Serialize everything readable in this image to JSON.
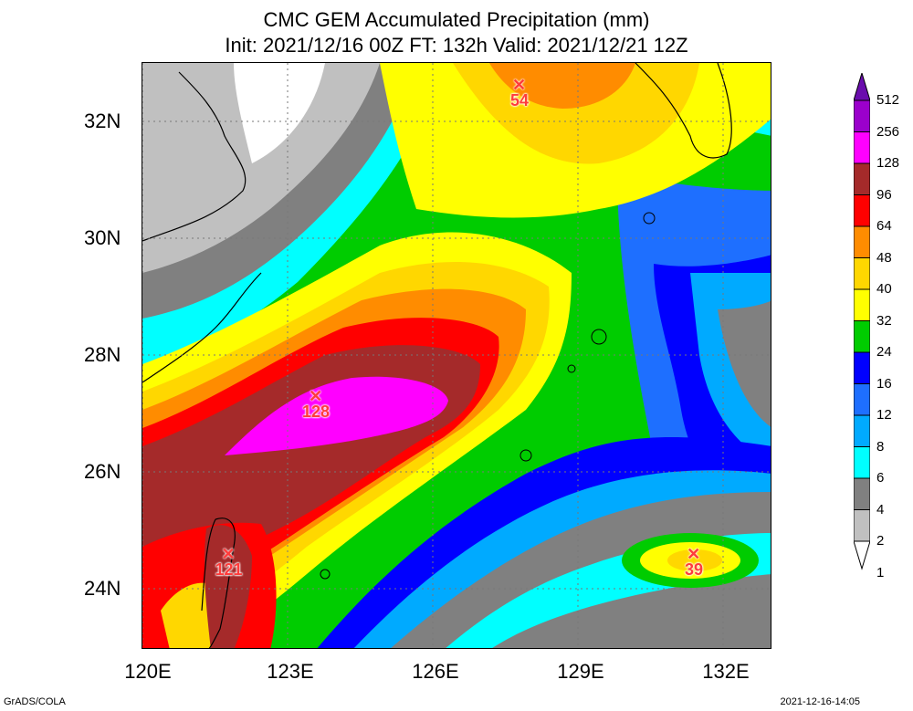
{
  "title": {
    "line1": "CMC GEM Accumulated Precipitation (mm)",
    "line2": "Init: 2021/12/16 00Z  FT: 132h  Valid: 2021/12/21 12Z"
  },
  "axes": {
    "lat_labels": [
      "32N",
      "30N",
      "28N",
      "26N",
      "24N"
    ],
    "lon_labels": [
      "120E",
      "123E",
      "126E",
      "129E",
      "132E"
    ]
  },
  "markers": [
    {
      "value": "54",
      "lon": 127.8,
      "lat": 32.6
    },
    {
      "value": "128",
      "lon": 123.6,
      "lat": 27.3
    },
    {
      "value": "121",
      "lon": 121.8,
      "lat": 24.6
    },
    {
      "value": "39",
      "lon": 131.4,
      "lat": 24.6
    }
  ],
  "colorbar": {
    "labels": [
      "512",
      "256",
      "128",
      "96",
      "64",
      "48",
      "40",
      "32",
      "24",
      "16",
      "12",
      "8",
      "6",
      "4",
      "2",
      "1"
    ],
    "colors": [
      "#6a0dad",
      "#9b00cc",
      "#ff00ff",
      "#a52a2a",
      "#ff0000",
      "#ff8c00",
      "#ffd700",
      "#ffff00",
      "#00cc00",
      "#0000ff",
      "#1e6fff",
      "#00aaff",
      "#00ffff",
      "#808080",
      "#c0c0c0",
      "#ffffff"
    ]
  },
  "footer": {
    "left": "GrADS/COLA",
    "right": "2021-12-16-14:05"
  }
}
